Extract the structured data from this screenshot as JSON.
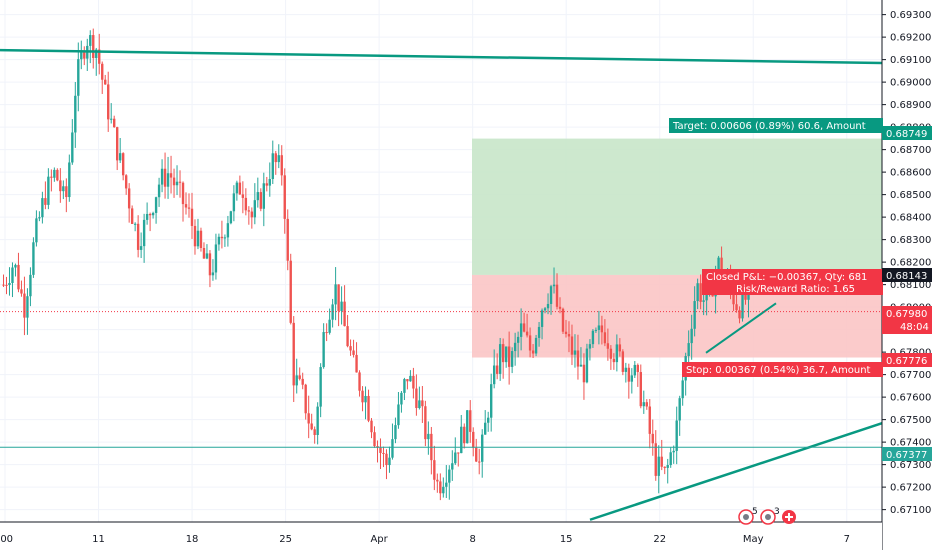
{
  "chart_data": {
    "type": "candlestick",
    "symbol_hint": "",
    "y_ticks": [
      "0.69300",
      "0.69200",
      "0.69100",
      "0.69000",
      "0.68900",
      "0.68800",
      "0.68700",
      "0.68600",
      "0.68500",
      "0.68400",
      "0.68300",
      "0.68200",
      "0.68100",
      "0.68000",
      "0.67900",
      "0.67800",
      "0.67700",
      "0.67600",
      "0.67500",
      "0.67400",
      "0.67300",
      "0.67200",
      "0.67100"
    ],
    "ylim": [
      0.67045,
      0.69365
    ],
    "x_ticks": [
      ":00",
      "11",
      "18",
      "25",
      "Apr",
      "8",
      "15",
      "22",
      "May",
      "7"
    ],
    "price_labels": {
      "target": {
        "value": "0.68749",
        "price": 0.68749,
        "color": "#089981"
      },
      "entry": {
        "value": "0.68143",
        "price": 0.68143,
        "color": "#131722"
      },
      "current": {
        "value": "0.67980",
        "countdown": "48:04",
        "price": 0.6798,
        "color": "#f23645"
      },
      "stop": {
        "value": "0.67776",
        "price": 0.67776,
        "color": "#f23645"
      },
      "hline": {
        "value": "0.67377",
        "price": 0.67377,
        "color": "#26a69a"
      }
    },
    "position": {
      "target_text": "Target: 0.00606 (0.89%) 60.6, Amount",
      "closed_text": "Closed P&L: −0.00367, Qty: 681",
      "ratio_text": "Risk/Reward Ratio: 1.65",
      "stop_text": "Stop: 0.00367 (0.54%) 36.7, Amount",
      "top": 0.68749,
      "entry": 0.68143,
      "stop": 0.67776
    },
    "trendlines": [
      {
        "name": "upper-trendline",
        "from": 0.69142,
        "to": 0.69085,
        "color": "#089981"
      },
      {
        "name": "lower-trendline",
        "from": 0.67055,
        "to": 0.67484,
        "color": "#089981"
      },
      {
        "name": "small-trendline",
        "from": 0.67797,
        "to": 0.68017,
        "color": "#089981"
      }
    ],
    "price_path": [
      0.681,
      0.682,
      0.68,
      0.683,
      0.685,
      0.686,
      0.6845,
      0.69,
      0.692,
      0.6915,
      0.689,
      0.687,
      0.685,
      0.683,
      0.684,
      0.6855,
      0.686,
      0.685,
      0.684,
      0.6825,
      0.6815,
      0.683,
      0.6845,
      0.6855,
      0.684,
      0.685,
      0.6865,
      0.686,
      0.677,
      0.676,
      0.674,
      0.679,
      0.681,
      0.679,
      0.677,
      0.676,
      0.674,
      0.673,
      0.675,
      0.677,
      0.676,
      0.674,
      0.672,
      0.673,
      0.674,
      0.675,
      0.673,
      0.676,
      0.678,
      0.6775,
      0.679,
      0.678,
      0.68,
      0.681,
      0.679,
      0.678,
      0.677,
      0.6785,
      0.679,
      0.678,
      0.6775,
      0.677,
      0.6755,
      0.673,
      0.6725,
      0.6745,
      0.678,
      0.681,
      0.68,
      0.682,
      0.681,
      0.68,
      0.6805
    ],
    "annotations": {
      "chat_count_1": "5",
      "chat_count_2": "3"
    }
  },
  "colors": {
    "up": "#26a69a",
    "down": "#ef5350",
    "grid": "#f0f3fa"
  }
}
